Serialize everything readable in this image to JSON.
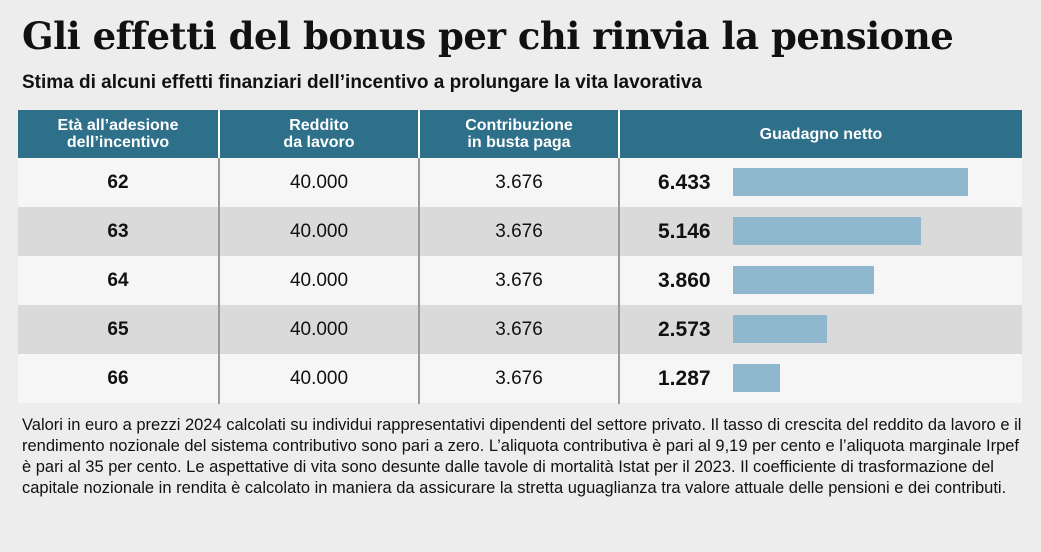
{
  "header": {
    "title": "Gli effetti del bonus per chi rinvia la pensione",
    "subtitle": "Stima di alcuni effetti finanziari dell’incentivo a prolungare la vita lavorativa"
  },
  "columns": [
    {
      "line1": "Età all’adesione",
      "line2": "dell’incentivo"
    },
    {
      "line1": "Reddito",
      "line2": "da lavoro"
    },
    {
      "line1": "Contribuzione",
      "line2": "in busta paga"
    },
    {
      "line1": "Guadagno netto",
      "line2": ""
    }
  ],
  "rows": [
    {
      "age": "62",
      "income": "40.000",
      "contribution": "3.676",
      "gain": "6.433"
    },
    {
      "age": "63",
      "income": "40.000",
      "contribution": "3.676",
      "gain": "5.146"
    },
    {
      "age": "64",
      "income": "40.000",
      "contribution": "3.676",
      "gain": "3.860"
    },
    {
      "age": "65",
      "income": "40.000",
      "contribution": "3.676",
      "gain": "2.573"
    },
    {
      "age": "66",
      "income": "40.000",
      "contribution": "3.676",
      "gain": "1.287"
    }
  ],
  "chart_data": {
    "type": "bar",
    "categories": [
      "62",
      "63",
      "64",
      "65",
      "66"
    ],
    "values": [
      6433,
      5146,
      3860,
      2573,
      1287
    ],
    "title": "Gli effetti del bonus per chi rinvia la pensione",
    "subtitle": "Stima di alcuni effetti finanziari dell’incentivo a prolungare la vita lavorativa",
    "orientation": "horizontal",
    "bar_color": "#8fb8cf",
    "header_color": "#2e6f8a"
  },
  "footnote": "Valori in euro a prezzi 2024 calcolati su individui rappresentativi dipendenti del settore privato. Il tasso di crescita del reddito da lavoro e il rendimento nozionale del sistema contributivo sono pari a zero. L’aliquota contributiva è pari al 9,19 per cento e l’aliquota marginale Irpef è pari al 35 per cento. Le aspettative di vita sono desunte dalle tavole di mortalità Istat per il 2023. Il coefficiente di trasformazione del capitale nozionale in rendita è calcolato in maniera da assicurare la stretta uguaglianza tra valore attuale delle pensioni e dei contributi."
}
